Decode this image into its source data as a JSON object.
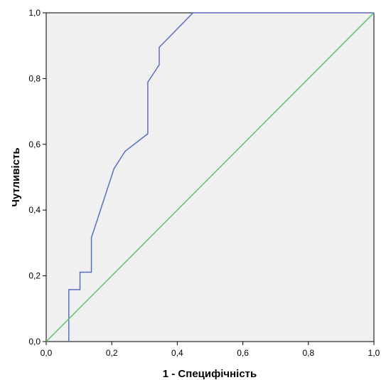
{
  "chart_data": {
    "type": "line",
    "title": "",
    "xlabel": "1 - Специфічність",
    "ylabel": "Чутливість",
    "xlim": [
      0,
      1
    ],
    "ylim": [
      0,
      1
    ],
    "x_ticks": [
      "0,0",
      "0,2",
      "0,4",
      "0,6",
      "0,8",
      "1,0"
    ],
    "y_ticks": [
      "0,0",
      "0,2",
      "0,4",
      "0,6",
      "0,8",
      "1,0"
    ],
    "grid": false,
    "legend": "none",
    "background_color": "#f0f0f0",
    "series": [
      {
        "color": "#5b6fbf",
        "x": [
          0.069,
          0.069,
          0.069,
          0.103,
          0.103,
          0.138,
          0.138,
          0.207,
          0.241,
          0.31,
          0.31,
          0.345,
          0.345,
          0.448,
          1.0
        ],
        "y": [
          0.0,
          0.158,
          0.158,
          0.158,
          0.211,
          0.211,
          0.316,
          0.526,
          0.579,
          0.632,
          0.789,
          0.842,
          0.895,
          1.0,
          1.0
        ]
      },
      {
        "color": "#5cc46a",
        "x": [
          0,
          1
        ],
        "y": [
          0,
          1
        ]
      }
    ]
  }
}
